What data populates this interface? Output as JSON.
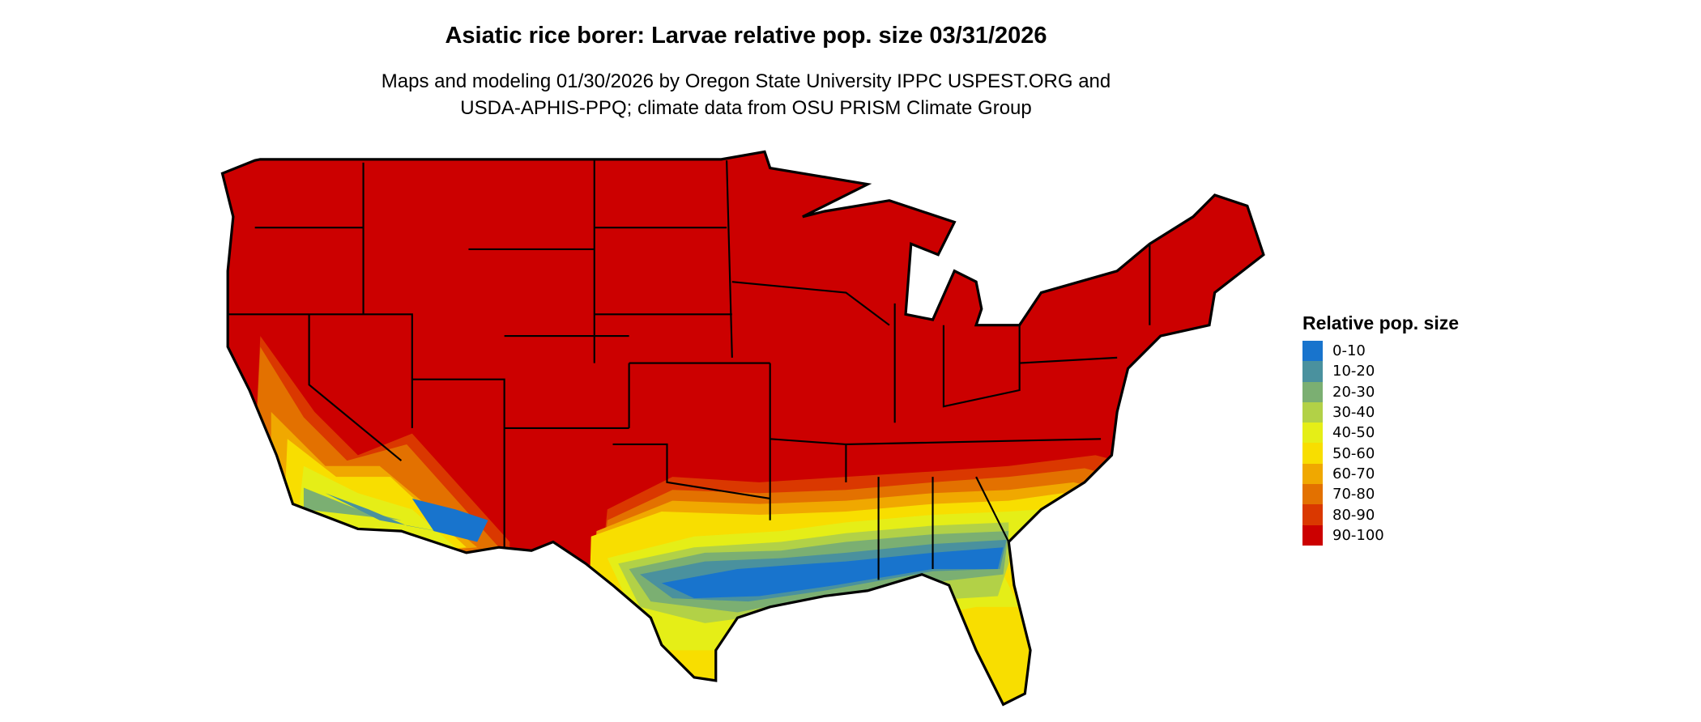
{
  "title": "Asiatic rice borer: Larvae relative pop. size 03/31/2026",
  "subtitle_lines": [
    "Maps and modeling 01/30/2026 by Oregon State University IPPC USPEST.ORG and",
    "USDA-APHIS-PPQ; climate data from OSU PRISM Climate Group"
  ],
  "legend": {
    "title": "Relative pop. size",
    "items": [
      {
        "label": "0-10",
        "color": "#1874CD"
      },
      {
        "label": "10-20",
        "color": "#4A919E"
      },
      {
        "label": "20-30",
        "color": "#7BAF72"
      },
      {
        "label": "30-40",
        "color": "#B2D147"
      },
      {
        "label": "40-50",
        "color": "#E5EE17"
      },
      {
        "label": "50-60",
        "color": "#F8DE00"
      },
      {
        "label": "60-70",
        "color": "#F0A800"
      },
      {
        "label": "70-80",
        "color": "#E37100"
      },
      {
        "label": "80-90",
        "color": "#DA3800"
      },
      {
        "label": "90-100",
        "color": "#CC0000"
      }
    ]
  },
  "chart_data": {
    "type": "heatmap",
    "title": "Asiatic rice borer: Larvae relative pop. size 03/31/2026",
    "region": "Contiguous United States",
    "legend_placement": "right",
    "dominant_class": "90-100",
    "southern_gradient": [
      "70-80",
      "60-70",
      "50-60",
      "40-50",
      "30-40",
      "20-30",
      "10-20",
      "0-10"
    ]
  }
}
